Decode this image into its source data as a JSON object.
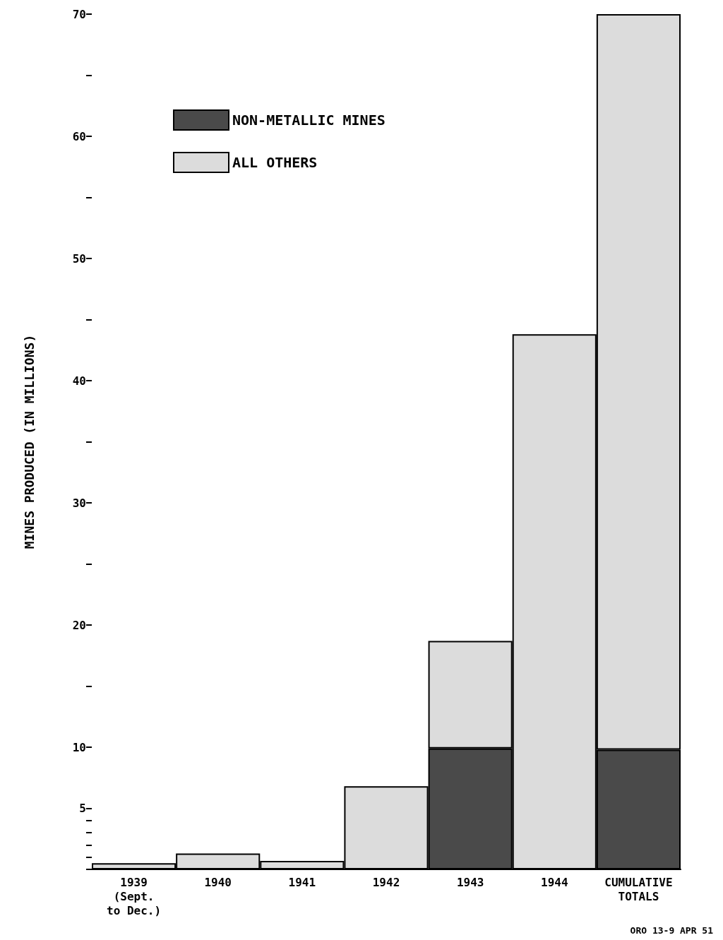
{
  "chart_data": {
    "type": "bar",
    "ylabel": "MINES PRODUCED (IN MILLIONS)",
    "categories": [
      "1939\n(Sept.\nto Dec.)",
      "1940",
      "1941",
      "1942",
      "1943",
      "1944",
      "CUMULATIVE\nTOTALS"
    ],
    "stacked": true,
    "series": [
      {
        "name": "NON-METALLIC MINES",
        "color": "#4a4a4a",
        "values": [
          0,
          0,
          0,
          0,
          9.9,
          0,
          9.8
        ]
      },
      {
        "name": "ALL OTHERS",
        "color": "#dcdcdc",
        "values": [
          0.5,
          1.3,
          0.7,
          6.8,
          8.8,
          43.8,
          60.2
        ]
      }
    ],
    "ylim": [
      0,
      70
    ],
    "yticks": [
      {
        "value": 0,
        "label": null
      },
      {
        "value": 1,
        "label": null
      },
      {
        "value": 2,
        "label": null
      },
      {
        "value": 3,
        "label": null
      },
      {
        "value": 4,
        "label": null
      },
      5,
      10,
      {
        "value": 15,
        "label": null
      },
      20,
      {
        "value": 25,
        "label": null
      },
      30,
      {
        "value": 35,
        "label": null
      },
      40,
      {
        "value": 45,
        "label": null
      },
      50,
      {
        "value": 55,
        "label": null
      },
      60,
      {
        "value": 65,
        "label": null
      },
      70
    ],
    "grid": false,
    "legend": "top left",
    "annotations": [
      "ORO 13-9 APR 51"
    ]
  }
}
